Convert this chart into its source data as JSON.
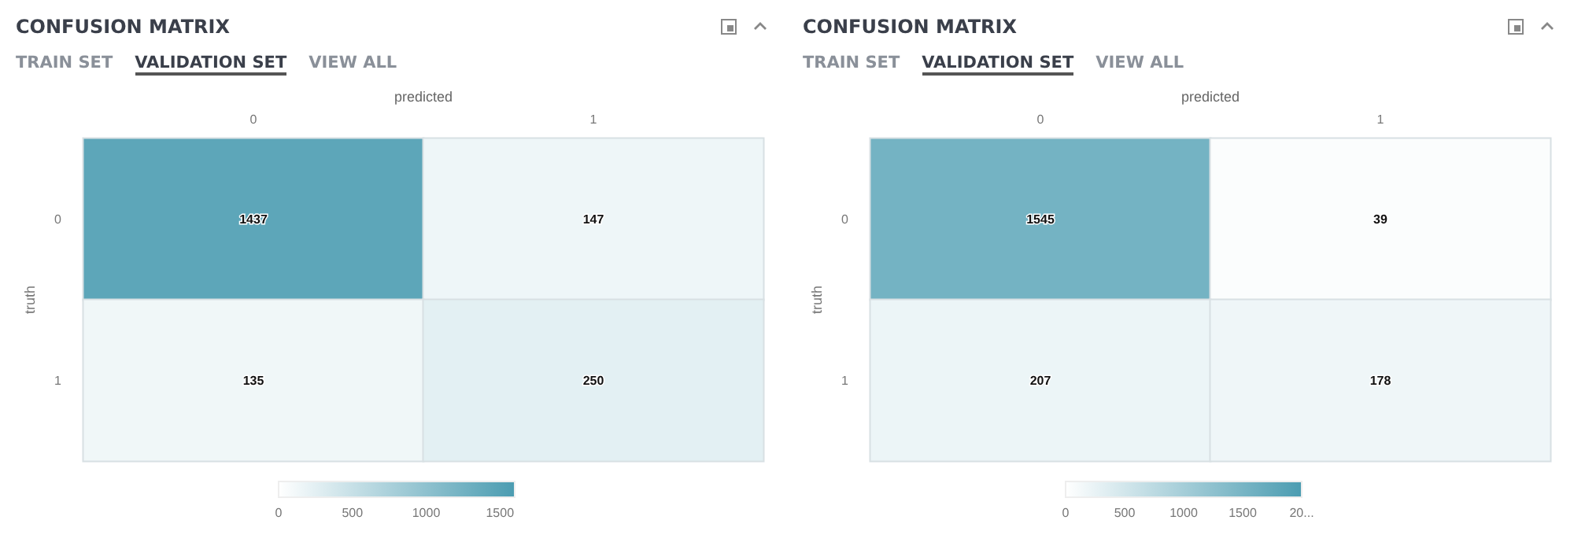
{
  "chart_data": [
    {
      "type": "heatmap",
      "title": "CONFUSION MATRIX",
      "annotations": [
        "TRAIN SET",
        "VALIDATION SET",
        "VIEW ALL"
      ],
      "xlabel": "predicted",
      "ylabel": "truth",
      "categories": [
        "0",
        "1"
      ],
      "y_categories": [
        "0",
        "1"
      ],
      "cells": [
        [
          1437,
          147
        ],
        [
          135,
          250
        ]
      ],
      "clim": [
        0,
        1600
      ],
      "cticks": [
        0,
        500,
        1000,
        1500
      ],
      "data_labels": true
    },
    {
      "type": "heatmap",
      "title": "CONFUSION MATRIX",
      "annotations": [
        "TRAIN SET",
        "VALIDATION SET",
        "VIEW ALL"
      ],
      "xlabel": "predicted",
      "ylabel": "truth",
      "categories": [
        "0",
        "1"
      ],
      "y_categories": [
        "0",
        "1"
      ],
      "cells": [
        [
          1545,
          39
        ],
        [
          207,
          178
        ]
      ],
      "clim": [
        0,
        2000
      ],
      "cticks": [
        0,
        500,
        1000,
        1500,
        {
          "value": 2000,
          "label": "20..."
        }
      ],
      "data_labels": true
    }
  ]
}
